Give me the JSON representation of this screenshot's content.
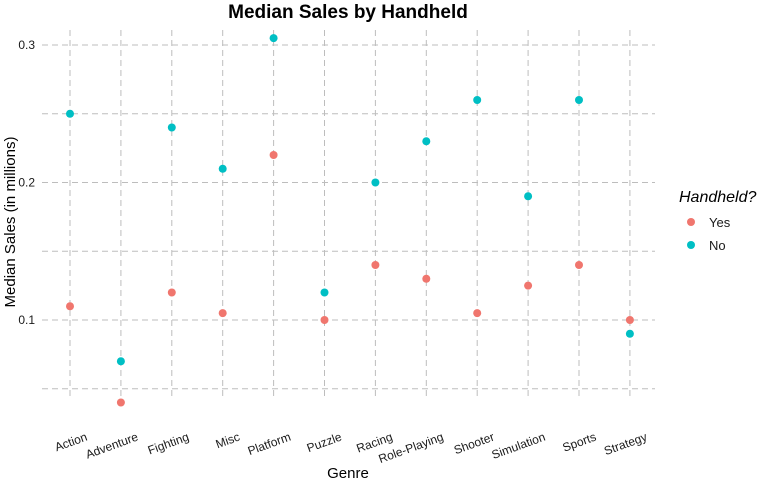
{
  "chart_data": {
    "type": "scatter",
    "title": "Median Sales by Handheld",
    "xlabel": "Genre",
    "ylabel": "Median Sales (in millions)",
    "categories": [
      "Action",
      "Adventure",
      "Fighting",
      "Misc",
      "Platform",
      "Puzzle",
      "Racing",
      "Role-Playing",
      "Shooter",
      "Simulation",
      "Sports",
      "Strategy"
    ],
    "series": [
      {
        "name": "Yes",
        "color": "#f0766e",
        "values": [
          0.11,
          0.04,
          0.12,
          0.105,
          0.22,
          0.1,
          0.14,
          0.13,
          0.105,
          0.125,
          0.14,
          0.1
        ]
      },
      {
        "name": "No",
        "color": "#00bfc4",
        "values": [
          0.25,
          0.07,
          0.24,
          0.21,
          0.305,
          0.12,
          0.2,
          0.23,
          0.26,
          0.19,
          0.26,
          0.09
        ]
      }
    ],
    "ylim": [
      0.025,
      0.315
    ],
    "yticks": [
      0.1,
      0.2,
      0.3
    ],
    "ytick_labels": [
      "0.1",
      "0.2",
      "0.3"
    ],
    "ygrid_minor": [
      0.05,
      0.15,
      0.25
    ],
    "grid": true,
    "legend": {
      "title": "Handheld?",
      "position": "right",
      "entries": [
        "Yes",
        "No"
      ]
    }
  }
}
